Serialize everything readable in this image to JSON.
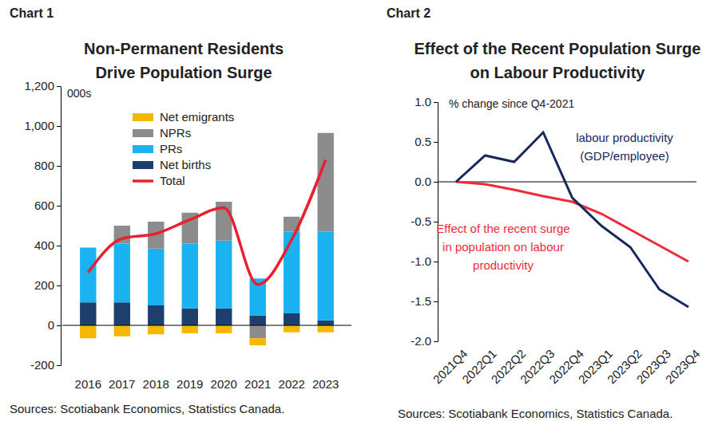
{
  "chart_data": [
    {
      "type": "bar",
      "panel": "Chart 1",
      "title": "Non-Permanent Residents\nDrive Population Surge",
      "y_label": "000s",
      "source": "Sources: Scotiabank Economics, Statistics Canada.",
      "categories": [
        "2016",
        "2017",
        "2018",
        "2019",
        "2020",
        "2021",
        "2022",
        "2023"
      ],
      "stacked": true,
      "grid": false,
      "ylim": [
        -200,
        1200
      ],
      "yticks": [
        -200,
        0,
        200,
        400,
        600,
        800,
        {
          "value": 1000,
          "label": "1,000"
        },
        {
          "value": 1200,
          "label": "1,200"
        }
      ],
      "series": [
        {
          "name": "Net emigrants",
          "type": "bar",
          "color": "#f5b800",
          "values": [
            -65,
            -55,
            -45,
            -40,
            -40,
            -35,
            -35,
            -35
          ]
        },
        {
          "name": "NPRs",
          "type": "bar",
          "color": "#8c8c8c",
          "values": [
            0,
            90,
            135,
            155,
            195,
            -65,
            75,
            495
          ]
        },
        {
          "name": "PRs",
          "type": "bar",
          "color": "#1ab2f0",
          "values": [
            275,
            295,
            285,
            325,
            340,
            185,
            410,
            445
          ]
        },
        {
          "name": "Net births",
          "type": "bar",
          "color": "#1d3f6e",
          "values": [
            115,
            115,
            100,
            85,
            85,
            50,
            60,
            25
          ]
        },
        {
          "name": "Total",
          "type": "line",
          "color": "#e8202f",
          "values": [
            265,
            435,
            460,
            530,
            590,
            205,
            430,
            830
          ]
        }
      ]
    },
    {
      "type": "line",
      "panel": "Chart 2",
      "title": "Effect of the Recent Population Surge\non Labour Productivity",
      "y_label": "% change since Q4-2021",
      "source": "Sources: Scotiabank Economics, Statistics Canada.",
      "categories": [
        "2021Q4",
        "2022Q1",
        "2022Q2",
        "2022Q3",
        "2022Q4",
        "2023Q1",
        "2023Q2",
        "2023Q3",
        "2023Q4"
      ],
      "grid": false,
      "ylim": [
        -2,
        1
      ],
      "yticks": [
        {
          "value": -2,
          "label": "-2.0"
        },
        -1.5,
        {
          "value": -1,
          "label": "-1.0"
        },
        -0.5,
        {
          "value": 0,
          "label": "0.0"
        },
        0.5,
        {
          "value": 1,
          "label": "1.0"
        }
      ],
      "series": [
        {
          "name": "labour productivity\n(GDP/employee)",
          "color": "#17285e",
          "values": [
            0,
            0.33,
            0.25,
            0.62,
            -0.2,
            -0.55,
            -0.82,
            -1.35,
            -1.57
          ]
        },
        {
          "name": "Effect of the recent surge\nin population on labour\nproductivity",
          "color": "#ee2b3b",
          "values": [
            0,
            -0.03,
            -0.1,
            -0.18,
            -0.25,
            -0.4,
            -0.6,
            -0.8,
            -1.0
          ]
        }
      ]
    }
  ]
}
